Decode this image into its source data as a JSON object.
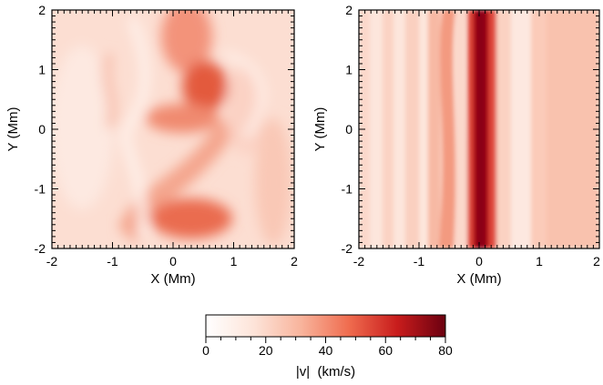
{
  "chart_data": [
    {
      "type": "heatmap",
      "panel": "left",
      "xlabel": "X (Mm)",
      "ylabel": "Y (Mm)",
      "xlim": [
        -2,
        2
      ],
      "ylim": [
        -2,
        2
      ],
      "xticks": [
        -2,
        -1,
        0,
        1,
        2
      ],
      "yticks": [
        -2,
        -1,
        0,
        1,
        2
      ],
      "tick_labels_x": [
        "-2",
        "-1",
        "0",
        "1",
        "2"
      ],
      "tick_labels_y": [
        "-2",
        "-1",
        "0",
        "1",
        "2"
      ],
      "description_values": {
        "max_speed_kms": 45,
        "background_speed_kms": 12
      }
    },
    {
      "type": "heatmap",
      "panel": "right",
      "xlabel": "X (Mm)",
      "ylabel": "Y (Mm)",
      "xlim": [
        -2,
        2
      ],
      "ylim": [
        -2,
        2
      ],
      "xticks": [
        -2,
        -1,
        0,
        1,
        2
      ],
      "yticks": [
        -2,
        -1,
        0,
        1,
        2
      ],
      "tick_labels_x": [
        "-2",
        "-1",
        "0",
        "1",
        "2"
      ],
      "tick_labels_y": [
        "-2",
        "-1",
        "0",
        "1",
        "2"
      ],
      "description_values": {
        "jet_center_x_mm": 0.0,
        "jet_peak_speed_kms": 80,
        "background_speed_kms": 10
      }
    }
  ],
  "colorbar": {
    "label": "|v|  (km/s)",
    "range": [
      0,
      80
    ],
    "ticks": [
      0,
      20,
      40,
      60,
      80
    ],
    "tick_labels": [
      "0",
      "20",
      "40",
      "60",
      "80"
    ],
    "colors": [
      "#ffffff",
      "#fde4d9",
      "#f8b39b",
      "#ef6b4e",
      "#c81c1c",
      "#6b0010"
    ]
  }
}
